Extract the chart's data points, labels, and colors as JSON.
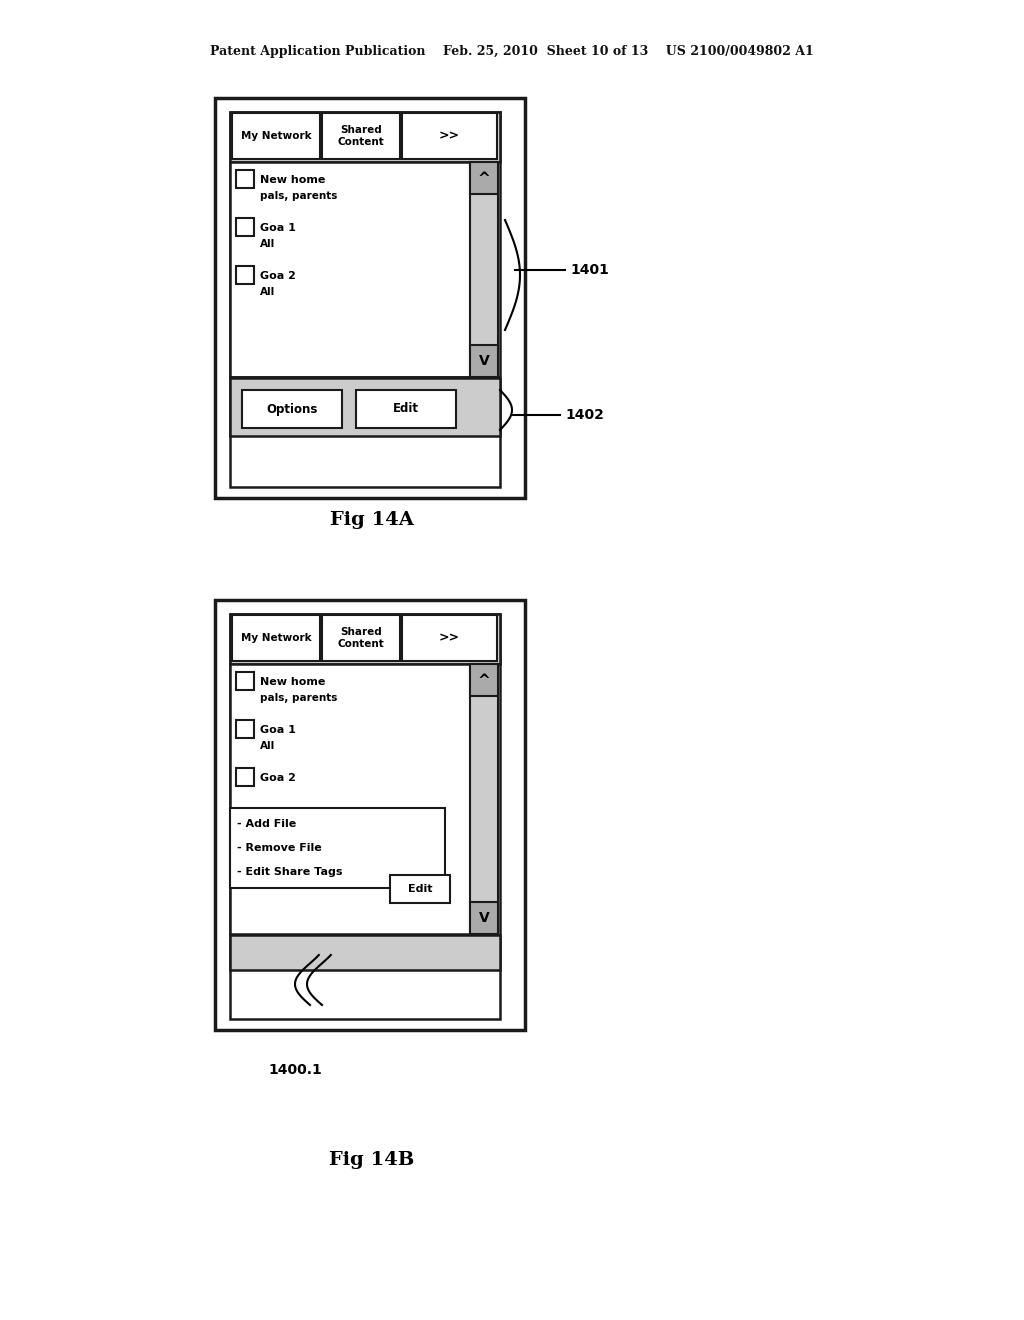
{
  "bg_color": "#ffffff",
  "header_text": "Patent Application Publication    Feb. 25, 2010  Sheet 10 of 13    US 2100/0049802 A1",
  "fig14a_label": "Fig 14A",
  "fig14b_label": "Fig 14B",
  "label_1401": "1401",
  "label_1402": "1402",
  "label_1400_1": "1400.1",
  "tab1": "My Network",
  "tab2": "Shared\nContent",
  "tab3": ">>",
  "list_items_a": [
    {
      "line1": "New home",
      "line2": "pals, parents"
    },
    {
      "line1": "Goa 1",
      "line2": "All"
    },
    {
      "line1": "Goa 2",
      "line2": "All"
    }
  ],
  "list_items_b": [
    {
      "line1": "New home",
      "line2": "pals, parents"
    },
    {
      "line1": "Goa 1",
      "line2": "All"
    },
    {
      "line1": "Goa 2",
      "line2": ""
    }
  ],
  "options_items_b": [
    "- Add File",
    "- Remove File",
    "- Edit Share Tags"
  ],
  "btn_options": "Options",
  "btn_edit": "Edit"
}
